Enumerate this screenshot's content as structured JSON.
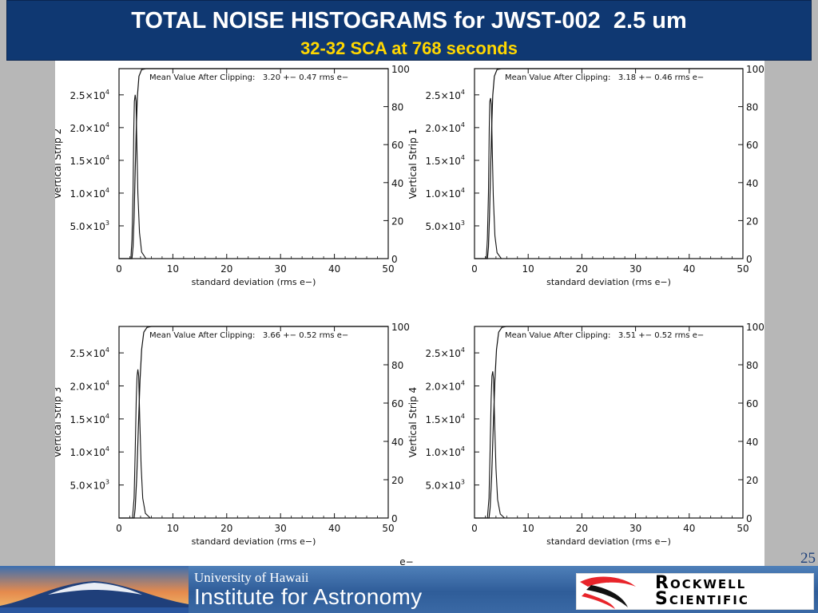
{
  "header": {
    "title": "TOTAL NOISE HISTOGRAMS for JWST-002  2.5 um",
    "subtitle": "32-32 SCA at 768 seconds"
  },
  "slide_number": "25",
  "stray_label": "e−",
  "footer": {
    "university": "University of Hawaii",
    "institute": "Institute for Astronomy",
    "partner_line1": "Rockwell",
    "partner_line2": "Scientific"
  },
  "colors": {
    "header_bg": "#0f3872",
    "title": "#ffffff",
    "subtitle": "#ffd700",
    "slide_bg": "#b7b7b7",
    "rockwell_red": "#e8242a"
  },
  "chart_data": [
    {
      "type": "line",
      "position": "top-left",
      "ylabel": "Vertical Strip 2",
      "xlabel": "standard deviation (rms e−)",
      "annotation": "Mean Value After Clipping:   3.20 +− 0.47 rms e−",
      "xlim": [
        0,
        50
      ],
      "ylim": [
        0,
        29000
      ],
      "x_ticks": [
        "0",
        "10",
        "20",
        "30",
        "40",
        "50"
      ],
      "y_ticks": [
        5000,
        10000,
        15000,
        20000,
        25000
      ],
      "y_tick_labels": [
        [
          "5.0×10",
          "3"
        ],
        [
          "1.0×10",
          "4"
        ],
        [
          "1.5×10",
          "4"
        ],
        [
          "2.0×10",
          "4"
        ],
        [
          "2.5×10",
          "4"
        ]
      ],
      "y2_ticks": [
        "0",
        "20",
        "40",
        "60",
        "80",
        "100"
      ],
      "series": [
        {
          "values": [
            [
              0,
              0
            ],
            [
              2.2,
              0
            ],
            [
              2.4,
              3000
            ],
            [
              2.6,
              10000
            ],
            [
              2.75,
              20000
            ],
            [
              2.85,
              24000
            ],
            [
              3.0,
              25000
            ],
            [
              3.15,
              24000
            ],
            [
              3.3,
              18000
            ],
            [
              3.5,
              10000
            ],
            [
              3.8,
              4000
            ],
            [
              4.2,
              1000
            ],
            [
              5,
              0
            ],
            [
              50,
              0
            ]
          ]
        },
        {
          "values": [
            [
              0,
              0
            ],
            [
              2.4,
              0
            ],
            [
              2.6,
              6
            ],
            [
              2.8,
              22
            ],
            [
              3.0,
              46
            ],
            [
              3.2,
              68
            ],
            [
              3.4,
              85
            ],
            [
              3.7,
              96
            ],
            [
              4.2,
              99.5
            ],
            [
              5,
              100
            ],
            [
              50,
              100
            ]
          ]
        }
      ]
    },
    {
      "type": "line",
      "position": "top-right",
      "ylabel": "Vertical Strip 1",
      "xlabel": "standard deviation (rms e−)",
      "annotation": "Mean Value After Clipping:   3.18 +− 0.46 rms e−",
      "xlim": [
        0,
        50
      ],
      "ylim": [
        0,
        29000
      ],
      "x_ticks": [
        "0",
        "10",
        "20",
        "30",
        "40",
        "50"
      ],
      "y_ticks": [
        5000,
        10000,
        15000,
        20000,
        25000
      ],
      "y_tick_labels": [
        [
          "5.0×10",
          "3"
        ],
        [
          "1.0×10",
          "4"
        ],
        [
          "1.5×10",
          "4"
        ],
        [
          "2.0×10",
          "4"
        ],
        [
          "2.5×10",
          "4"
        ]
      ],
      "y2_ticks": [
        "0",
        "20",
        "40",
        "60",
        "80",
        "100"
      ],
      "series": [
        {
          "values": [
            [
              0,
              0
            ],
            [
              2.2,
              0
            ],
            [
              2.4,
              3000
            ],
            [
              2.6,
              10000
            ],
            [
              2.75,
              20000
            ],
            [
              2.85,
              24000
            ],
            [
              3.0,
              24500
            ],
            [
              3.15,
              23500
            ],
            [
              3.3,
              17000
            ],
            [
              3.5,
              9500
            ],
            [
              3.8,
              3500
            ],
            [
              4.2,
              900
            ],
            [
              5,
              0
            ],
            [
              50,
              0
            ]
          ]
        },
        {
          "values": [
            [
              0,
              0
            ],
            [
              2.4,
              0
            ],
            [
              2.6,
              6
            ],
            [
              2.8,
              23
            ],
            [
              3.0,
              47
            ],
            [
              3.2,
              69
            ],
            [
              3.4,
              86
            ],
            [
              3.7,
              96
            ],
            [
              4.2,
              99.5
            ],
            [
              5,
              100
            ],
            [
              50,
              100
            ]
          ]
        }
      ]
    },
    {
      "type": "line",
      "position": "bottom-left",
      "ylabel": "Vertical Strip 3",
      "xlabel": "standard deviation (rms e−)",
      "annotation": "Mean Value After Clipping:   3.66 +− 0.52 rms e−",
      "xlim": [
        0,
        50
      ],
      "ylim": [
        0,
        29000
      ],
      "x_ticks": [
        "0",
        "10",
        "20",
        "30",
        "40",
        "50"
      ],
      "y_ticks": [
        5000,
        10000,
        15000,
        20000,
        25000
      ],
      "y_tick_labels": [
        [
          "5.0×10",
          "3"
        ],
        [
          "1.0×10",
          "4"
        ],
        [
          "1.5×10",
          "4"
        ],
        [
          "2.0×10",
          "4"
        ],
        [
          "2.5×10",
          "4"
        ]
      ],
      "y2_ticks": [
        "0",
        "20",
        "40",
        "60",
        "80",
        "100"
      ],
      "series": [
        {
          "values": [
            [
              0,
              0
            ],
            [
              2.5,
              0
            ],
            [
              2.8,
              3000
            ],
            [
              3.0,
              10000
            ],
            [
              3.2,
              18000
            ],
            [
              3.35,
              21500
            ],
            [
              3.5,
              22500
            ],
            [
              3.65,
              21500
            ],
            [
              3.85,
              15000
            ],
            [
              4.1,
              8000
            ],
            [
              4.4,
              3000
            ],
            [
              4.9,
              700
            ],
            [
              5.8,
              0
            ],
            [
              50,
              0
            ]
          ]
        },
        {
          "values": [
            [
              0,
              0
            ],
            [
              2.8,
              0
            ],
            [
              3.0,
              5
            ],
            [
              3.3,
              22
            ],
            [
              3.6,
              48
            ],
            [
              3.9,
              72
            ],
            [
              4.2,
              88
            ],
            [
              4.6,
              97
            ],
            [
              5.2,
              99.5
            ],
            [
              6,
              100
            ],
            [
              50,
              100
            ]
          ]
        }
      ]
    },
    {
      "type": "line",
      "position": "bottom-right",
      "ylabel": "Vertical Strip 4",
      "xlabel": "standard deviation (rms e−)",
      "annotation": "Mean Value After Clipping:   3.51 +− 0.52 rms e−",
      "xlim": [
        0,
        50
      ],
      "ylim": [
        0,
        29000
      ],
      "x_ticks": [
        "0",
        "10",
        "20",
        "30",
        "40",
        "50"
      ],
      "y_ticks": [
        5000,
        10000,
        15000,
        20000,
        25000
      ],
      "y_tick_labels": [
        [
          "5.0×10",
          "3"
        ],
        [
          "1.0×10",
          "4"
        ],
        [
          "1.5×10",
          "4"
        ],
        [
          "2.0×10",
          "4"
        ],
        [
          "2.5×10",
          "4"
        ]
      ],
      "y2_ticks": [
        "0",
        "20",
        "40",
        "60",
        "80",
        "100"
      ],
      "series": [
        {
          "values": [
            [
              0,
              0
            ],
            [
              2.4,
              0
            ],
            [
              2.7,
              3000
            ],
            [
              2.9,
              10000
            ],
            [
              3.1,
              18000
            ],
            [
              3.25,
              21500
            ],
            [
              3.4,
              22200
            ],
            [
              3.55,
              21000
            ],
            [
              3.75,
              14500
            ],
            [
              4.0,
              7500
            ],
            [
              4.3,
              2800
            ],
            [
              4.8,
              600
            ],
            [
              5.6,
              0
            ],
            [
              50,
              0
            ]
          ]
        },
        {
          "values": [
            [
              0,
              0
            ],
            [
              2.7,
              0
            ],
            [
              2.9,
              5
            ],
            [
              3.2,
              22
            ],
            [
              3.5,
              48
            ],
            [
              3.8,
              72
            ],
            [
              4.1,
              88
            ],
            [
              4.5,
              97
            ],
            [
              5.1,
              99.5
            ],
            [
              5.9,
              100
            ],
            [
              50,
              100
            ]
          ]
        }
      ]
    }
  ]
}
